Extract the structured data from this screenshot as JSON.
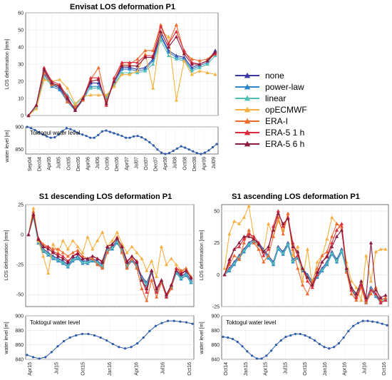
{
  "colors": {
    "none": "#3b3aa3",
    "power-law": "#2e86c8",
    "linear": "#4fc0b8",
    "opECMWF": "#f5b041",
    "ERA-I": "#ec6b2d",
    "ERA-5 1 h": "#dd2a3c",
    "ERA-5 6 h": "#8b1a3c",
    "water": "#2c5aa8"
  },
  "legend": [
    "none",
    "power-law",
    "linear",
    "opECMWF",
    "ERA-I",
    "ERA-5 1 h",
    "ERA-5 6 h"
  ],
  "chart_data": [
    {
      "id": "envisat",
      "type": "line",
      "title": "Envisat LOS deformation P1",
      "xlabel": "",
      "ylabel": "LOS deformation [mm]",
      "ylim": [
        0,
        60
      ],
      "yticks": [
        0,
        10,
        20,
        30,
        40,
        50,
        60
      ],
      "grid": true,
      "x": [
        "Sep04",
        "Dec04",
        "Apr05",
        "Jul05",
        "Aug05",
        "Sep05",
        "Oct05",
        "Dec05",
        "Jun06",
        "Jul06",
        "Aug06",
        "Oct06",
        "Dec06",
        "Jan07",
        "Apr07",
        "May07",
        "Jul07",
        "Feb08",
        "Apr08",
        "Jun08",
        "Jul08",
        "Aug08",
        "Sep08",
        "Nov08",
        "Jul09"
      ],
      "series": [
        {
          "name": "none",
          "values": [
            0,
            6,
            26,
            18,
            16,
            9,
            4,
            10,
            19,
            19,
            9,
            20,
            28,
            28,
            27,
            28,
            33,
            47,
            38,
            35,
            34,
            28,
            30,
            32,
            38
          ]
        },
        {
          "name": "power-law",
          "values": [
            0,
            5,
            24,
            17,
            15,
            8,
            3,
            9,
            17,
            17,
            9,
            19,
            27,
            27,
            26,
            27,
            32,
            46,
            37,
            34,
            33,
            27,
            29,
            31,
            37
          ]
        },
        {
          "name": "linear",
          "values": [
            0,
            5,
            22,
            18,
            17,
            12,
            6,
            11,
            16,
            16,
            11,
            18,
            25,
            25,
            25,
            26,
            30,
            44,
            35,
            33,
            32,
            26,
            28,
            30,
            35
          ]
        },
        {
          "name": "opECMWF",
          "values": [
            0,
            4,
            21,
            20,
            21,
            16,
            7,
            11,
            12,
            12,
            12,
            17,
            24,
            24,
            26,
            36,
            16,
            49,
            46,
            9,
            32,
            24,
            26,
            25,
            24
          ]
        },
        {
          "name": "ERA-I",
          "values": [
            0,
            6,
            25,
            18,
            18,
            8,
            5,
            9,
            21,
            28,
            8,
            20,
            30,
            30,
            33,
            38,
            38,
            53,
            42,
            53,
            37,
            33,
            32,
            33,
            37
          ]
        },
        {
          "name": "ERA-5 1 h",
          "values": [
            0,
            6,
            28,
            20,
            18,
            11,
            3,
            10,
            22,
            22,
            6,
            22,
            31,
            31,
            31,
            35,
            35,
            52,
            42,
            49,
            38,
            31,
            30,
            32,
            36
          ]
        },
        {
          "name": "ERA-5 6 h",
          "values": [
            0,
            6,
            27,
            19,
            17,
            10,
            3,
            10,
            20,
            21,
            7,
            20,
            29,
            29,
            29,
            34,
            34,
            49,
            40,
            46,
            36,
            30,
            30,
            32,
            37
          ]
        }
      ]
    },
    {
      "id": "envisat-water",
      "type": "line",
      "inline_label": "Toktogul water level",
      "xlabel": "",
      "ylabel": "water level [m]",
      "ylim": [
        840,
        900
      ],
      "yticks": [
        850,
        900
      ],
      "xtick_labels": [
        "Sep04",
        "Dec04",
        "Apr05",
        "Jul05",
        "Oct05",
        "Dec05",
        "Apr06",
        "Jul06",
        "Oct06",
        "Dec06",
        "Apr07",
        "Jul07",
        "Oct07",
        "Dec07",
        "Apr08",
        "Jul08",
        "Oct08",
        "Dec08",
        "Apr09",
        "Jul09"
      ],
      "values": [
        900,
        897,
        893,
        888,
        883,
        879,
        876,
        877,
        883,
        891,
        897,
        895,
        891,
        886,
        883,
        880,
        876,
        876,
        882,
        890,
        892,
        889,
        886,
        883,
        880,
        876,
        876,
        879,
        880,
        877,
        872,
        866,
        859,
        850,
        843,
        840,
        842,
        847,
        852,
        857,
        854,
        850,
        846,
        842,
        840,
        843,
        848,
        855,
        862
      ]
    },
    {
      "id": "s1-desc",
      "type": "line",
      "title": "S1 descending LOS deformation P1",
      "xlabel": "",
      "ylabel": "LOS deformation [mm]",
      "ylim": [
        -60,
        25
      ],
      "yticks": [
        -50,
        -25,
        0,
        25
      ],
      "grid": true,
      "series": [
        {
          "name": "none",
          "values": [
            0,
            17,
            -5,
            -12,
            -15,
            -18,
            -20,
            -22,
            -25,
            -20,
            -18,
            -22,
            -22,
            -20,
            -22,
            -25,
            -12,
            -10,
            -5,
            -12,
            -25,
            -20,
            -25,
            -35,
            -40,
            -30,
            -45,
            -38,
            -50,
            -42,
            -30,
            -35,
            -32,
            -38
          ]
        },
        {
          "name": "power-law",
          "values": [
            0,
            15,
            -7,
            -14,
            -17,
            -20,
            -22,
            -24,
            -27,
            -22,
            -20,
            -24,
            -24,
            -22,
            -24,
            -27,
            -14,
            -12,
            -7,
            -14,
            -27,
            -22,
            -27,
            -37,
            -42,
            -32,
            -47,
            -40,
            -52,
            -44,
            -32,
            -37,
            -34,
            -40
          ]
        },
        {
          "name": "linear",
          "values": [
            0,
            14,
            -6,
            -13,
            -16,
            -19,
            -21,
            -23,
            -26,
            -21,
            -19,
            -23,
            -23,
            -21,
            -23,
            -26,
            -13,
            -11,
            -6,
            -13,
            -26,
            -21,
            -26,
            -36,
            -41,
            -31,
            -46,
            -39,
            -51,
            -43,
            -31,
            -36,
            -33,
            -39
          ]
        },
        {
          "name": "opECMWF",
          "values": [
            0,
            22,
            -5,
            -18,
            -32,
            -8,
            -15,
            -5,
            -12,
            -5,
            -10,
            -15,
            -2,
            -12,
            -5,
            2,
            -10,
            -5,
            2,
            -8,
            -15,
            -10,
            -15,
            -20,
            -30,
            -22,
            -35,
            -10,
            -25,
            -20,
            -25,
            -30,
            -30,
            -35
          ]
        },
        {
          "name": "ERA-I",
          "values": [
            0,
            19,
            -3,
            -8,
            -10,
            -12,
            -12,
            -15,
            -18,
            -15,
            -13,
            -18,
            -20,
            -20,
            -25,
            -28,
            -15,
            -8,
            -2,
            -15,
            -28,
            -20,
            -28,
            -45,
            -55,
            -38,
            -52,
            -40,
            -52,
            -45,
            -28,
            -30,
            -28,
            -35
          ]
        },
        {
          "name": "ERA-5 1 h",
          "values": [
            0,
            16,
            -3,
            -10,
            -10,
            -14,
            -16,
            -18,
            -22,
            -18,
            -15,
            -20,
            -20,
            -18,
            -20,
            -22,
            -10,
            -8,
            -3,
            -10,
            -22,
            -18,
            -22,
            -38,
            -48,
            -30,
            -48,
            -38,
            -52,
            -42,
            -28,
            -32,
            -30,
            -36
          ]
        },
        {
          "name": "ERA-5 6 h",
          "values": [
            0,
            17,
            -4,
            -10,
            -12,
            -15,
            -18,
            -20,
            -23,
            -18,
            -16,
            -20,
            -20,
            -18,
            -20,
            -23,
            -10,
            -8,
            -3,
            -10,
            -23,
            -18,
            -23,
            -38,
            -45,
            -30,
            -45,
            -38,
            -50,
            -42,
            -30,
            -33,
            -30,
            -36
          ]
        }
      ]
    },
    {
      "id": "s1-desc-water",
      "type": "line",
      "inline_label": "Toktogul water level",
      "xlabel": "",
      "ylabel": "water level [m]",
      "ylim": [
        840,
        900
      ],
      "yticks": [
        840,
        860,
        880,
        900
      ],
      "xtick_labels": [
        "Apr15",
        "Jul15",
        "Oct15",
        "Jan16",
        "Apr16",
        "Jul16",
        "Oct16"
      ],
      "values": [
        846,
        843,
        841,
        843,
        850,
        858,
        865,
        870,
        873,
        875,
        875,
        873,
        870,
        866,
        861,
        857,
        855,
        857,
        862,
        870,
        879,
        886,
        890,
        893,
        893,
        892,
        891,
        889
      ]
    },
    {
      "id": "s1-asc",
      "type": "line",
      "title": "S1 ascending LOS deformation P1",
      "xlabel": "",
      "ylabel": "LOS deformation [mm]",
      "ylim": [
        -25,
        55
      ],
      "yticks": [
        -25,
        0,
        25,
        50
      ],
      "grid": true,
      "series": [
        {
          "name": "none",
          "values": [
            0,
            5,
            10,
            15,
            20,
            25,
            28,
            25,
            20,
            15,
            10,
            22,
            18,
            25,
            12,
            15,
            5,
            0,
            -5,
            0,
            5,
            10,
            18,
            12,
            20,
            5,
            -10,
            -15,
            -8,
            -20,
            -10,
            -15,
            -20,
            -18
          ]
        },
        {
          "name": "power-law",
          "values": [
            0,
            3,
            8,
            13,
            18,
            23,
            26,
            23,
            18,
            13,
            8,
            20,
            16,
            23,
            10,
            13,
            3,
            -2,
            -7,
            -2,
            3,
            8,
            16,
            10,
            18,
            3,
            -12,
            -17,
            -10,
            -22,
            -12,
            -17,
            -22,
            -20
          ]
        },
        {
          "name": "linear",
          "values": [
            0,
            4,
            9,
            14,
            19,
            24,
            27,
            24,
            19,
            14,
            9,
            21,
            17,
            24,
            11,
            14,
            4,
            -1,
            -6,
            -1,
            4,
            9,
            17,
            11,
            19,
            4,
            -11,
            -16,
            -9,
            -21,
            -11,
            -16,
            -21,
            -19
          ]
        },
        {
          "name": "opECMWF",
          "values": [
            5,
            32,
            42,
            40,
            45,
            54,
            30,
            20,
            18,
            40,
            30,
            42,
            35,
            48,
            15,
            22,
            -5,
            20,
            -8,
            10,
            15,
            28,
            45,
            40,
            35,
            10,
            -5,
            -10,
            -20,
            15,
            -5,
            18,
            20,
            20
          ]
        },
        {
          "name": "ERA-I",
          "values": [
            0,
            8,
            15,
            12,
            25,
            35,
            25,
            20,
            10,
            15,
            30,
            45,
            32,
            48,
            20,
            5,
            -8,
            -15,
            -5,
            5,
            15,
            18,
            30,
            40,
            38,
            2,
            -15,
            -20,
            -10,
            -22,
            -15,
            -10,
            -20,
            -18
          ]
        },
        {
          "name": "ERA-5 1 h",
          "values": [
            0,
            10,
            20,
            22,
            28,
            32,
            30,
            25,
            15,
            20,
            38,
            50,
            38,
            45,
            25,
            15,
            5,
            -5,
            -10,
            0,
            10,
            15,
            25,
            35,
            40,
            5,
            -12,
            -18,
            -8,
            -20,
            -12,
            -15,
            -22,
            -20
          ]
        },
        {
          "name": "ERA-5 6 h",
          "values": [
            0,
            12,
            20,
            25,
            30,
            30,
            28,
            24,
            18,
            22,
            35,
            48,
            40,
            44,
            22,
            18,
            5,
            -2,
            -8,
            2,
            10,
            14,
            22,
            30,
            35,
            5,
            -10,
            -15,
            -5,
            -18,
            25,
            -12,
            -18,
            -16
          ]
        }
      ]
    },
    {
      "id": "s1-asc-water",
      "type": "line",
      "inline_label": "Toktogul water level",
      "xlabel": "",
      "ylabel": "water level [m]",
      "ylim": [
        840,
        900
      ],
      "yticks": [
        840,
        860,
        880,
        900
      ],
      "xtick_labels": [
        "Oct14",
        "Jan15",
        "Apr15",
        "Jul15",
        "Oct15",
        "Jan16",
        "Apr16",
        "Jul16",
        "Oct16"
      ],
      "values": [
        871,
        870,
        868,
        864,
        858,
        851,
        845,
        841,
        841,
        845,
        852,
        860,
        866,
        871,
        873,
        875,
        875,
        873,
        870,
        866,
        861,
        857,
        855,
        857,
        862,
        870,
        879,
        886,
        890,
        893,
        893,
        892,
        891,
        889,
        887
      ]
    }
  ]
}
